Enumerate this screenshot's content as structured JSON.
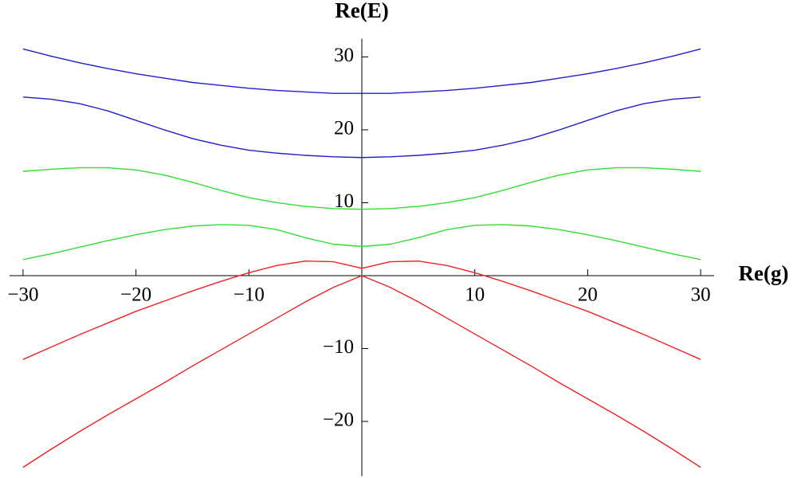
{
  "chart_data": {
    "type": "line",
    "x_label": "Re(g)",
    "y_label": "Re(E)",
    "x": [
      -30,
      -27.5,
      -25,
      -22.5,
      -20,
      -17.5,
      -15,
      -12.5,
      -10,
      -7.5,
      -5,
      -2.5,
      0,
      2.5,
      5,
      7.5,
      10,
      12.5,
      15,
      17.5,
      20,
      22.5,
      25,
      27.5,
      30
    ],
    "series": [
      {
        "color": "#1f1fcc",
        "values": [
          31.1,
          30.1,
          29.2,
          28.4,
          27.7,
          27.1,
          26.5,
          26.1,
          25.7,
          25.4,
          25.2,
          25.0,
          25.0,
          25.0,
          25.2,
          25.4,
          25.7,
          26.1,
          26.5,
          27.1,
          27.7,
          28.4,
          29.2,
          30.1,
          31.1
        ]
      },
      {
        "color": "#1f1fcc",
        "values": [
          24.5,
          24.2,
          23.6,
          22.6,
          21.3,
          20.0,
          18.8,
          17.9,
          17.2,
          16.8,
          16.5,
          16.3,
          16.2,
          16.3,
          16.5,
          16.8,
          17.2,
          17.9,
          18.8,
          20.0,
          21.3,
          22.6,
          23.6,
          24.2,
          24.5
        ]
      },
      {
        "color": "#33dd33",
        "values": [
          14.3,
          14.6,
          14.8,
          14.8,
          14.5,
          13.8,
          12.8,
          11.7,
          10.7,
          10.0,
          9.5,
          9.2,
          9.1,
          9.2,
          9.5,
          10.0,
          10.7,
          11.7,
          12.8,
          13.8,
          14.5,
          14.8,
          14.8,
          14.6,
          14.3
        ]
      },
      {
        "color": "#33dd33",
        "values": [
          2.2,
          3.0,
          3.9,
          4.8,
          5.6,
          6.3,
          6.8,
          7.0,
          6.9,
          6.3,
          5.2,
          4.3,
          4.0,
          4.3,
          5.2,
          6.3,
          6.9,
          7.0,
          6.8,
          6.3,
          5.6,
          4.8,
          3.9,
          3.0,
          2.2
        ]
      },
      {
        "color": "#ee2222",
        "values": [
          -11.5,
          -9.8,
          -8.1,
          -6.5,
          -4.9,
          -3.5,
          -2.1,
          -0.8,
          0.4,
          1.4,
          2.0,
          1.9,
          1.0,
          1.9,
          2.0,
          1.4,
          0.4,
          -0.8,
          -2.1,
          -3.5,
          -4.9,
          -6.5,
          -8.1,
          -9.8,
          -11.5
        ]
      },
      {
        "color": "#ee2222",
        "values": [
          -26.3,
          -23.8,
          -21.4,
          -19.1,
          -16.9,
          -14.7,
          -12.4,
          -10.2,
          -8.0,
          -5.8,
          -3.6,
          -1.6,
          0,
          -1.6,
          -3.6,
          -5.8,
          -8.0,
          -10.2,
          -12.4,
          -14.7,
          -16.9,
          -19.1,
          -21.4,
          -23.8,
          -26.3
        ]
      }
    ],
    "xlim": [
      -31.2,
      31.2
    ],
    "ylim": [
      -27.5,
      32.5
    ],
    "xticks": [
      {
        "value": -30,
        "label": "−30"
      },
      {
        "value": -20,
        "label": "−20"
      },
      {
        "value": -10,
        "label": "−10"
      },
      10,
      20,
      30
    ],
    "yticks": [
      {
        "value": -20,
        "label": "−20"
      },
      {
        "value": -10,
        "label": "−10"
      },
      10,
      20,
      30
    ],
    "grid": false
  }
}
